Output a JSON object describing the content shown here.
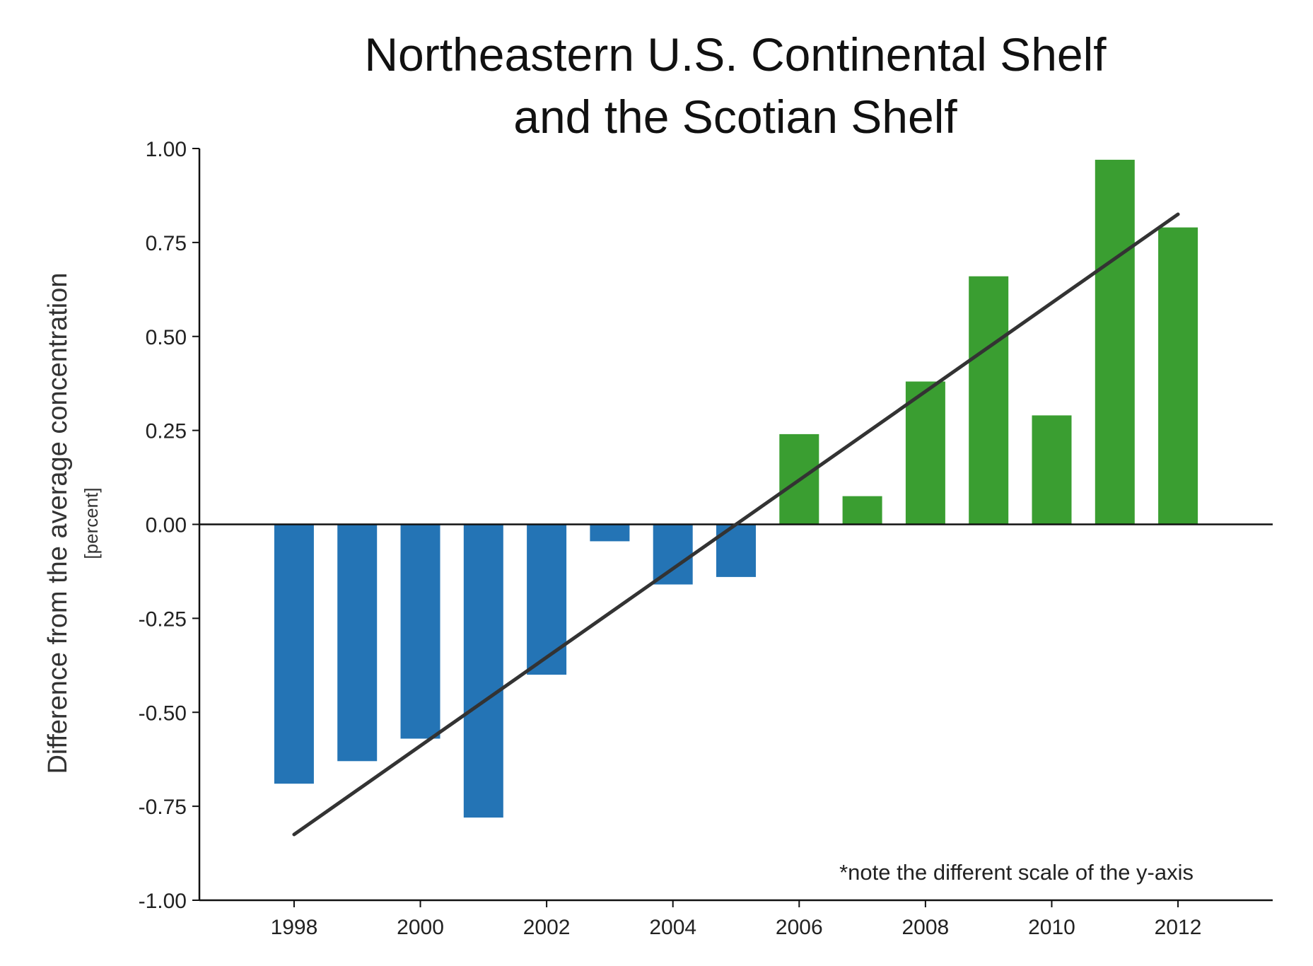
{
  "chart_data": {
    "type": "bar",
    "title_lines": [
      "Northeastern U.S. Continental Shelf",
      "and the Scotian Shelf"
    ],
    "ylabel": "Difference from the average concentration",
    "ylabel_unit": "[percent]",
    "xlabel": "",
    "note": "*note the different scale of the y-axis",
    "ylim": [
      -1.0,
      1.0
    ],
    "xlim": [
      1996.5,
      2013.5
    ],
    "y_ticks": [
      1.0,
      0.75,
      0.5,
      0.25,
      0.0,
      -0.25,
      -0.5,
      -0.75,
      -1.0
    ],
    "y_tick_labels": [
      "1.00",
      "0.75",
      "0.50",
      "0.25",
      "0.00",
      "-0.25",
      "-0.50",
      "-0.75",
      "-1.00"
    ],
    "x_ticks": [
      1998,
      2000,
      2002,
      2004,
      2006,
      2008,
      2010,
      2012
    ],
    "x_tick_labels": [
      "1998",
      "2000",
      "2002",
      "2004",
      "2006",
      "2008",
      "2010",
      "2012"
    ],
    "categories": [
      1998,
      1999,
      2000,
      2001,
      2002,
      2003,
      2004,
      2005,
      2006,
      2007,
      2008,
      2009,
      2010,
      2011,
      2012
    ],
    "values": [
      -0.69,
      -0.63,
      -0.57,
      -0.78,
      -0.4,
      -0.045,
      -0.16,
      -0.14,
      0.24,
      0.075,
      0.38,
      0.66,
      0.29,
      0.97,
      0.79
    ],
    "trend_line": {
      "x": [
        1998,
        2012
      ],
      "y": [
        -0.825,
        0.825
      ]
    },
    "colors": {
      "negative": "#2474b5",
      "positive": "#3a9e31",
      "trend": "#333333",
      "axis": "#111111"
    },
    "grid": false,
    "legend": "none"
  }
}
